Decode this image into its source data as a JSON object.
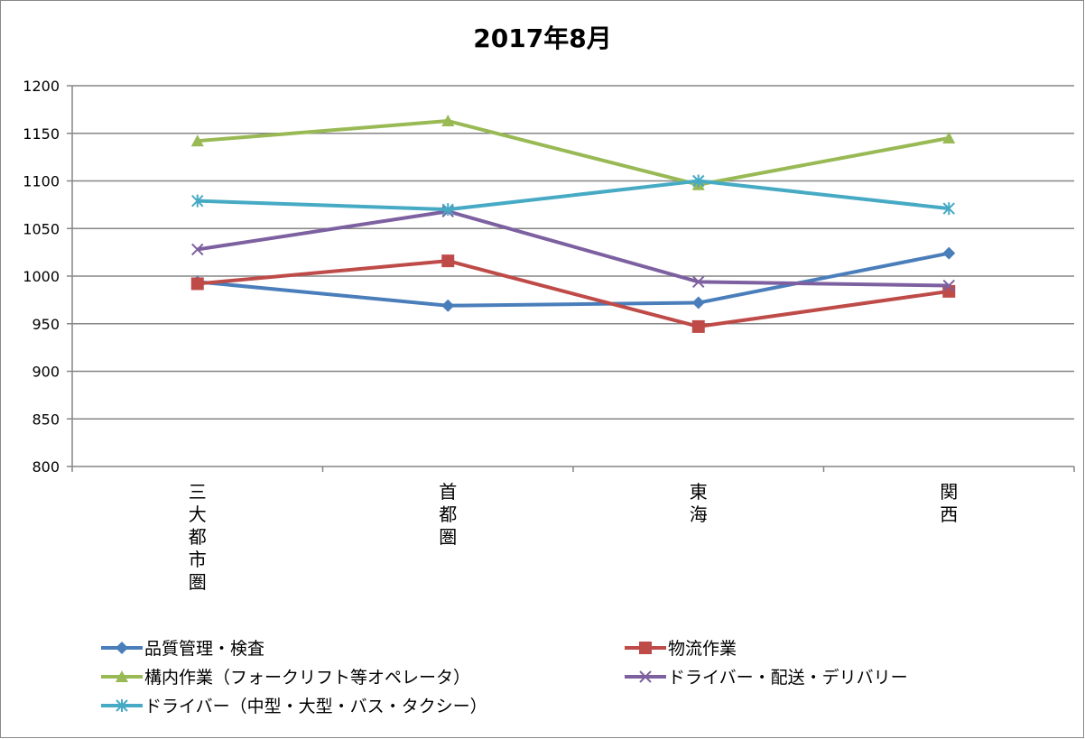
{
  "chart_data": {
    "type": "line",
    "title": "2017年8月",
    "xlabel": "",
    "ylabel": "",
    "ylim": [
      800,
      1200
    ],
    "yticks": [
      800,
      850,
      900,
      950,
      1000,
      1050,
      1100,
      1150,
      1200
    ],
    "grid": true,
    "legend_position": "bottom",
    "categories": [
      "三大都市圏",
      "首都圏",
      "東海",
      "関西"
    ],
    "series": [
      {
        "name": "品質管理・検査",
        "color": "#4a7ebb",
        "marker": "diamond",
        "values": [
          994,
          969,
          972,
          1024
        ]
      },
      {
        "name": "物流作業",
        "color": "#be4b48",
        "marker": "square",
        "values": [
          992,
          1016,
          947,
          984
        ]
      },
      {
        "name": "構内作業（フォークリフト等オペレータ）",
        "color": "#98b954",
        "marker": "triangle",
        "values": [
          1142,
          1163,
          1096,
          1145
        ]
      },
      {
        "name": "ドライバー・配送・デリバリー",
        "color": "#7d60a0",
        "marker": "x",
        "values": [
          1028,
          1068,
          994,
          990
        ]
      },
      {
        "name": "ドライバー（中型・大型・バス・タクシー）",
        "color": "#46aac5",
        "marker": "asterisk",
        "values": [
          1079,
          1070,
          1100,
          1071
        ]
      }
    ]
  }
}
